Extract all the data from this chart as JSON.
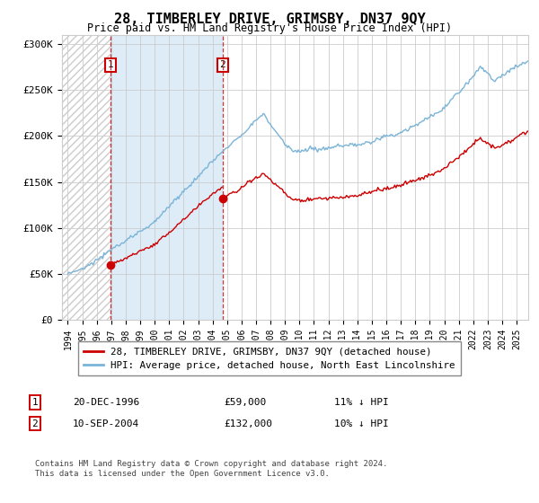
{
  "title": "28, TIMBERLEY DRIVE, GRIMSBY, DN37 9QY",
  "subtitle": "Price paid vs. HM Land Registry's House Price Index (HPI)",
  "sale1_date": "20-DEC-1996",
  "sale1_price": 59000,
  "sale1_hpi": "11% ↓ HPI",
  "sale1_label": "1",
  "sale1_year": 1996.97,
  "sale2_date": "10-SEP-2004",
  "sale2_price": 132000,
  "sale2_label": "2",
  "sale2_hpi": "10% ↓ HPI",
  "sale2_year": 2004.7,
  "legend_line1": "28, TIMBERLEY DRIVE, GRIMSBY, DN37 9QY (detached house)",
  "legend_line2": "HPI: Average price, detached house, North East Lincolnshire",
  "footer": "Contains HM Land Registry data © Crown copyright and database right 2024.\nThis data is licensed under the Open Government Licence v3.0.",
  "hpi_color": "#7ab4d8",
  "price_color": "#cc0000",
  "shade_color": "#d6e8f5",
  "grid_color": "#cccccc",
  "ylim": [
    0,
    310000
  ],
  "yticks": [
    0,
    50000,
    100000,
    150000,
    200000,
    250000,
    300000
  ],
  "ytick_labels": [
    "£0",
    "£50K",
    "£100K",
    "£150K",
    "£200K",
    "£250K",
    "£300K"
  ],
  "xmin": 1993.6,
  "xmax": 2025.8,
  "hpi_seed": 10,
  "price_seed": 77
}
